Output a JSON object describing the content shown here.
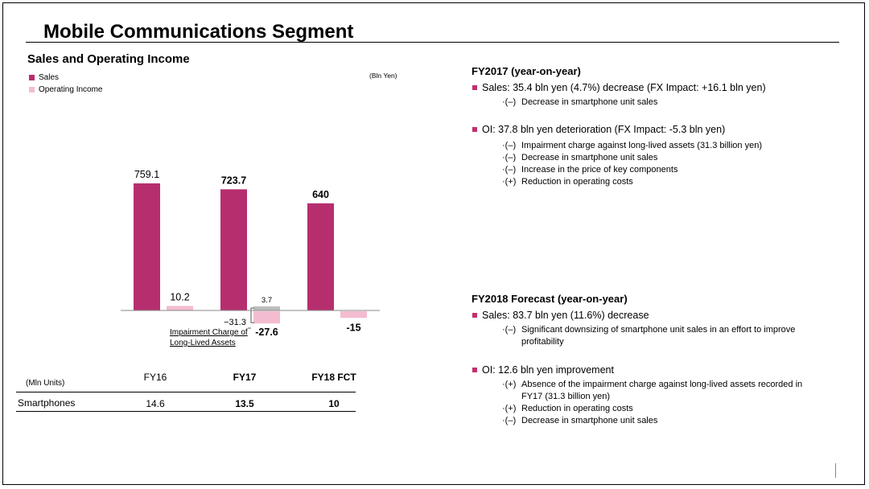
{
  "header": {
    "title": "Mobile Communications Segment"
  },
  "left": {
    "section_title": "Sales and Operating Income",
    "unit": "(Bln Yen)",
    "impairment_note_line1": "Impairment Charge of",
    "impairment_note_line2": "Long-Lived Assets"
  },
  "colors": {
    "sales": "#b72e6f",
    "oi": "#f4bcd1",
    "impairment": "#bdbdbd",
    "accent": "#c2306f"
  },
  "chart_data": {
    "type": "bar",
    "categories": [
      "FY16",
      "FY17",
      "FY18 FCT"
    ],
    "series": [
      {
        "name": "Sales",
        "values": [
          759.1,
          723.7,
          640
        ],
        "labels": [
          "759.1",
          "723.7",
          "640"
        ]
      },
      {
        "name": "Operating Income",
        "values": [
          10.2,
          -27.6,
          -15
        ],
        "labels": [
          "10.2",
          "-27.6",
          "-15"
        ]
      }
    ],
    "fy17_oi_breakdown": {
      "impairment_charge": -31.3,
      "impairment_label": "−31.3",
      "excluding_impairment": 3.7,
      "excluding_label": "3.7"
    },
    "label_bold": [
      false,
      true,
      true
    ],
    "legend": "top-left",
    "grid": false
  },
  "table": {
    "unit_label": "(Mln Units)",
    "headers": [
      "FY16",
      "FY17",
      "FY18 FCT"
    ],
    "row_label": "Smartphones",
    "values": [
      "14.6",
      "13.5",
      "10"
    ]
  },
  "right": {
    "fy2017": {
      "title": "FY2017 (year-on-year)",
      "sales": "Sales: 35.4 bln yen (4.7%) decrease (FX Impact: +16.1 bln yen)",
      "sales_items": [
        {
          "tag": "·(–)",
          "text": "Decrease in smartphone unit sales"
        }
      ],
      "oi": "OI: 37.8 bln yen deterioration (FX Impact: -5.3 bln yen)",
      "oi_items": [
        {
          "tag": "·(–)",
          "text": "Impairment charge against long-lived assets (31.3 billion yen)"
        },
        {
          "tag": "·(–)",
          "text": "Decrease in smartphone unit sales"
        },
        {
          "tag": "·(–)",
          "text": "Increase in the price of key components"
        },
        {
          "tag": "·(+)",
          "text": "Reduction in operating costs"
        }
      ]
    },
    "fy2018": {
      "title": "FY2018 Forecast (year-on-year)",
      "sales": "Sales: 83.7 bln yen (11.6%) decrease",
      "sales_items": [
        {
          "tag": "·(–)",
          "text": "Significant downsizing of smartphone unit sales in an effort to improve"
        },
        {
          "tag": "",
          "text": "profitability"
        }
      ],
      "oi": "OI: 12.6 bln yen improvement",
      "oi_items": [
        {
          "tag": "·(+)",
          "text": "Absence of the impairment charge against long-lived assets recorded in"
        },
        {
          "tag": "",
          "text": "FY17 (31.3 billion yen)"
        },
        {
          "tag": "·(+)",
          "text": "Reduction in operating costs"
        },
        {
          "tag": "·(–)",
          "text": "Decrease in smartphone unit sales"
        }
      ]
    }
  }
}
